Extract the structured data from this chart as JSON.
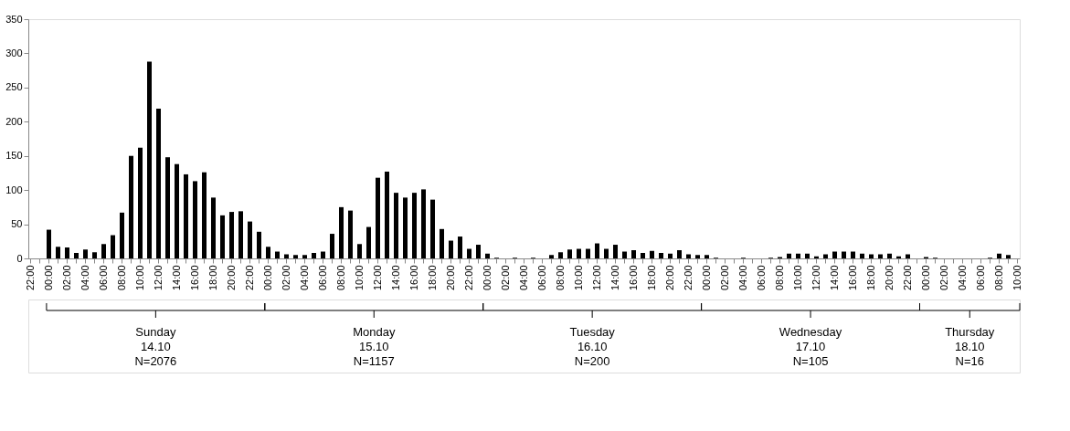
{
  "chart_data": {
    "type": "bar",
    "color": "#000000",
    "categories": [
      "22:00",
      null,
      "00:00",
      null,
      "02:00",
      null,
      "04:00",
      null,
      "06:00",
      null,
      "08:00",
      null,
      "10:00",
      null,
      "12:00",
      null,
      "14:00",
      null,
      "16:00",
      null,
      "18:00",
      null,
      "20:00",
      null,
      "22:00",
      null,
      "00:00",
      null,
      "02:00",
      null,
      "04:00",
      null,
      "06:00",
      null,
      "08:00",
      null,
      "10:00",
      null,
      "12:00",
      null,
      "14:00",
      null,
      "16:00",
      null,
      "18:00",
      null,
      "20:00",
      null,
      "22:00",
      null,
      "00:00",
      null,
      "02:00",
      null,
      "04:00",
      null,
      "06:00",
      null,
      "08:00",
      null,
      "10:00",
      null,
      "12:00",
      null,
      "14:00",
      null,
      "16:00",
      null,
      "18:00",
      null,
      "20:00",
      null,
      "22:00",
      null,
      "00:00",
      null,
      "02:00",
      null,
      "04:00",
      null,
      "06:00",
      null,
      "08:00",
      null,
      "10:00",
      null,
      "12:00",
      null,
      "14:00",
      null,
      "16:00",
      null,
      "18:00",
      null,
      "20:00",
      null,
      "22:00",
      null,
      "00:00",
      null,
      "02:00",
      null,
      "04:00",
      null,
      "06:00",
      null,
      "08:00",
      null,
      "10:00"
    ],
    "values": [
      0,
      0,
      42,
      17,
      16,
      8,
      13,
      9,
      21,
      34,
      67,
      150,
      162,
      288,
      219,
      148,
      138,
      123,
      113,
      126,
      89,
      63,
      68,
      69,
      54,
      39,
      17,
      10,
      6,
      5,
      5,
      8,
      10,
      36,
      75,
      70,
      21,
      46,
      118,
      127,
      96,
      89,
      96,
      101,
      86,
      43,
      26,
      32,
      14,
      20,
      7,
      1,
      0,
      1,
      0,
      1,
      0,
      5,
      9,
      13,
      14,
      14,
      22,
      14,
      20,
      10,
      12,
      8,
      11,
      8,
      7,
      12,
      6,
      5,
      5,
      1,
      0,
      0,
      1,
      0,
      0,
      1,
      2,
      7,
      7,
      7,
      3,
      6,
      10,
      10,
      10,
      7,
      6,
      6,
      7,
      3,
      6,
      0,
      2,
      1,
      0,
      0,
      0,
      0,
      0,
      1,
      7,
      5,
      0
    ],
    "ylim": [
      0,
      350
    ],
    "yticks": [
      0,
      50,
      100,
      150,
      200,
      250,
      300,
      350
    ],
    "grid": false,
    "annotations": [
      "Sunday\n14.10\nN=2076",
      "Monday\n15.10\nN=1157",
      "Tuesday\n16.10\nN=200",
      "Wednesday\n17.10\nN=105",
      "Thursday\n18.10\nN=16"
    ]
  }
}
